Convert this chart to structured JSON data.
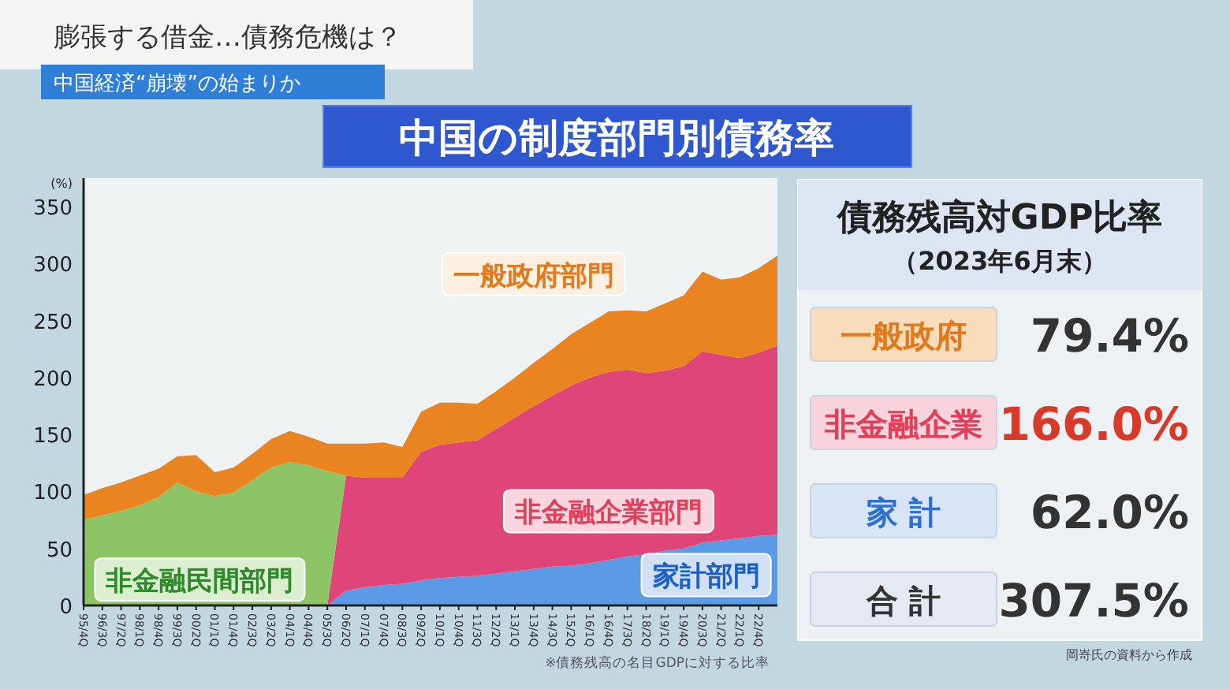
{
  "chart_data": [
    {
      "type": "area",
      "stacked": true,
      "title": "中国の制度部門別債務率",
      "ylabel": "(%)",
      "annotations": [
        "膨張する借金…債務危機は？",
        "中国経済“崩壊”の始まりか",
        "※債務残高の名目GDPに対する比率"
      ],
      "categories": [
        "95/4Q",
        "96/3Q",
        "97/2Q",
        "98/1Q",
        "98/4Q",
        "99/3Q",
        "00/2Q",
        "01/1Q",
        "01/4Q",
        "02/3Q",
        "03/2Q",
        "04/1Q",
        "04/4Q",
        "05/3Q",
        "06/2Q",
        "07/1Q",
        "07/4Q",
        "08/3Q",
        "09/2Q",
        "10/1Q",
        "10/4Q",
        "11/3Q",
        "12/2Q",
        "13/1Q",
        "13/4Q",
        "14/3Q",
        "15/2Q",
        "16/1Q",
        "16/4Q",
        "17/3Q",
        "18/2Q",
        "19/1Q",
        "19/4Q",
        "20/3Q",
        "21/2Q",
        "22/1Q",
        "22/4Q",
        null
      ],
      "ylim": [
        0,
        375
      ],
      "yticks": [
        0,
        50,
        100,
        150,
        200,
        250,
        300,
        350
      ],
      "series": [
        {
          "name": "家計部門",
          "color": "#5b9be6",
          "values": [
            null,
            null,
            null,
            null,
            null,
            null,
            null,
            null,
            null,
            null,
            null,
            null,
            null,
            0,
            13,
            16,
            18,
            19,
            22,
            24,
            25,
            26,
            28,
            30,
            32,
            34,
            35,
            37,
            40,
            43,
            45,
            48,
            50,
            55,
            57,
            59,
            61,
            62
          ]
        },
        {
          "name": "非金融企業部門",
          "color": "#e0457a",
          "values": [
            null,
            null,
            null,
            null,
            null,
            null,
            null,
            null,
            null,
            null,
            null,
            null,
            null,
            0,
            101,
            96,
            94,
            93,
            113,
            117,
            118,
            119,
            127,
            135,
            143,
            150,
            158,
            163,
            165,
            164,
            159,
            158,
            160,
            168,
            163,
            158,
            161,
            166
          ]
        },
        {
          "name": "非金融民間部門",
          "color": "#8cc466",
          "values": [
            75,
            79,
            83,
            88,
            95,
            108,
            100,
            96,
            99,
            110,
            121,
            126,
            123,
            118,
            0,
            null,
            null,
            null,
            null,
            null,
            null,
            null,
            null,
            null,
            null,
            null,
            null,
            null,
            null,
            null,
            null,
            null,
            null,
            null,
            null,
            null,
            null,
            null
          ]
        },
        {
          "name": "一般政府部門",
          "color": "#ea8420",
          "values": [
            22,
            24,
            25,
            26,
            25,
            23,
            32,
            21,
            22,
            23,
            25,
            27,
            25,
            24,
            28,
            30,
            31,
            27,
            35,
            37,
            35,
            32,
            33,
            35,
            38,
            41,
            45,
            48,
            53,
            52,
            54,
            59,
            62,
            70,
            66,
            71,
            74,
            79
          ]
        }
      ]
    },
    {
      "type": "other",
      "title": "債務残高対GDP比率",
      "subtitle": "（2023年6月末）",
      "categories": [
        "一般政府",
        "非金融企業",
        "家 計",
        "合 計"
      ],
      "value_labels": [
        "79.4%",
        "166.0%",
        "62.0%",
        "307.5%"
      ],
      "colors": [
        "#f8dcbc",
        "#f8d3dc",
        "#d8e5f6",
        "#e4e9f2"
      ],
      "annotations": [
        "岡嵜氏の資料から作成"
      ]
    }
  ]
}
